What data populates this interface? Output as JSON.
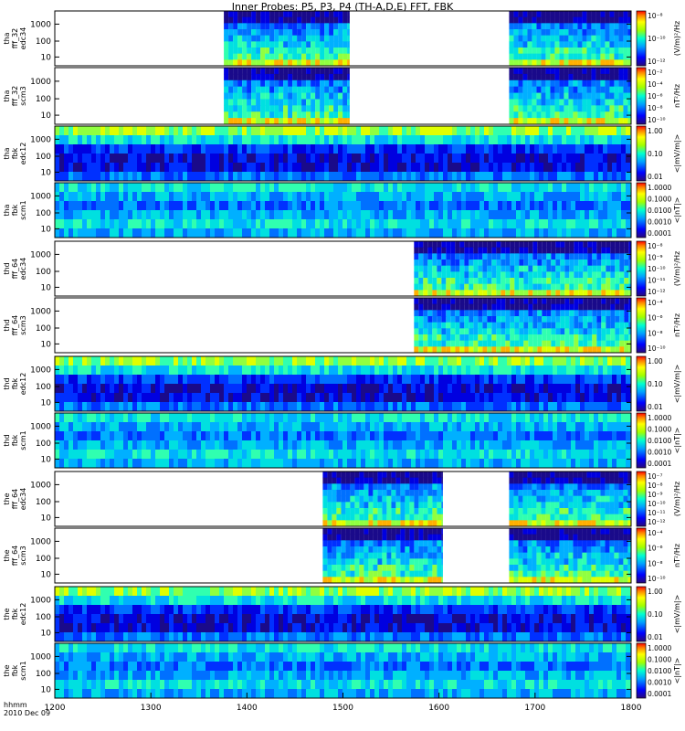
{
  "chart_data": {
    "type": "heatmap",
    "title": "Inner Probes: P5, P3, P4 (TH-A,D,E) FFT, FBK",
    "x_ticks": [
      "1200",
      "1300",
      "1400",
      "1500",
      "1600",
      "1700",
      "1800"
    ],
    "xlim": [
      1200,
      1800
    ],
    "x_label_line1": "hhmm",
    "x_label_line2": "2010 Dec 09",
    "y_ticks_big": [
      "10",
      "100",
      "1000"
    ],
    "y_ticks_small": [
      "10",
      "100",
      "1000"
    ],
    "panels": [
      {
        "ylabel": [
          "tha",
          "fff_32",
          "edc34"
        ],
        "cbar_title": "(V/m)²/Hz",
        "cbar_ticks": [
          "10⁻⁸",
          "10⁻¹⁰",
          "10⁻¹²"
        ],
        "scale": "log",
        "segments": [
          [
            1376,
            1507
          ],
          [
            1673,
            1800
          ]
        ]
      },
      {
        "ylabel": [
          "tha",
          "fff_32",
          "scm3"
        ],
        "cbar_title": "nT²/Hz",
        "cbar_ticks": [
          "10⁻²",
          "10⁻⁴",
          "10⁻⁶",
          "10⁻⁸",
          "10⁻¹⁰"
        ],
        "scale": "log",
        "segments": [
          [
            1376,
            1507
          ],
          [
            1673,
            1800
          ]
        ]
      },
      {
        "ylabel": [
          "tha",
          "fbk",
          "edc12"
        ],
        "cbar_title": "<|mV/m|>",
        "cbar_ticks": [
          "1.00",
          "0.10",
          "0.01"
        ],
        "scale": "log",
        "segments": [
          [
            1200,
            1800
          ]
        ]
      },
      {
        "ylabel": [
          "tha",
          "fbk",
          "scm1"
        ],
        "cbar_title": "<|nT|>",
        "cbar_ticks": [
          "1.0000",
          "0.1000",
          "0.0100",
          "0.0010",
          "0.0001"
        ],
        "scale": "log",
        "segments": [
          [
            1200,
            1800
          ]
        ]
      },
      {
        "ylabel": [
          "thd",
          "fff_64",
          "edc34"
        ],
        "cbar_title": "(V/m)²/Hz",
        "cbar_ticks": [
          "10⁻⁸",
          "10⁻⁹",
          "10⁻¹⁰",
          "10⁻¹¹",
          "10⁻¹²"
        ],
        "scale": "log",
        "segments": [
          [
            1574,
            1800
          ]
        ]
      },
      {
        "ylabel": [
          "thd",
          "fff_64",
          "scm3"
        ],
        "cbar_title": "nT²/Hz",
        "cbar_ticks": [
          "10⁻⁴",
          "10⁻⁶",
          "10⁻⁸",
          "10⁻¹⁰"
        ],
        "scale": "log",
        "segments": [
          [
            1574,
            1800
          ]
        ]
      },
      {
        "ylabel": [
          "thd",
          "fbk",
          "edc12"
        ],
        "cbar_title": "<|mV/m|>",
        "cbar_ticks": [
          "1.00",
          "0.10",
          "0.01"
        ],
        "scale": "log",
        "segments": [
          [
            1200,
            1800
          ]
        ]
      },
      {
        "ylabel": [
          "thd",
          "fbk",
          "scm1"
        ],
        "cbar_title": "<|nT|>",
        "cbar_ticks": [
          "1.0000",
          "0.1000",
          "0.0100",
          "0.0010",
          "0.0001"
        ],
        "scale": "log",
        "segments": [
          [
            1200,
            1800
          ]
        ]
      },
      {
        "ylabel": [
          "the",
          "fff_64",
          "edc34"
        ],
        "cbar_title": "(V/m)²/Hz",
        "cbar_ticks": [
          "10⁻⁷",
          "10⁻⁸",
          "10⁻⁹",
          "10⁻¹⁰",
          "10⁻¹¹",
          "10⁻¹²"
        ],
        "scale": "log",
        "segments": [
          [
            1479,
            1604
          ],
          [
            1673,
            1800
          ]
        ]
      },
      {
        "ylabel": [
          "the",
          "fff_64",
          "scm3"
        ],
        "cbar_title": "nT²/Hz",
        "cbar_ticks": [
          "10⁻⁴",
          "10⁻⁶",
          "10⁻⁸",
          "10⁻¹⁰"
        ],
        "scale": "log",
        "segments": [
          [
            1479,
            1604
          ],
          [
            1673,
            1800
          ]
        ]
      },
      {
        "ylabel": [
          "the",
          "fbk",
          "edc12"
        ],
        "cbar_title": "<|mV/m|>",
        "cbar_ticks": [
          "1.00",
          "0.10",
          "0.01"
        ],
        "scale": "log",
        "segments": [
          [
            1200,
            1800
          ]
        ]
      },
      {
        "ylabel": [
          "the",
          "fbk",
          "scm1"
        ],
        "cbar_title": "<|nT|>",
        "cbar_ticks": [
          "1.0000",
          "0.1000",
          "0.0100",
          "0.0010",
          "0.0001"
        ],
        "scale": "log",
        "segments": [
          [
            1200,
            1800
          ]
        ]
      }
    ]
  }
}
